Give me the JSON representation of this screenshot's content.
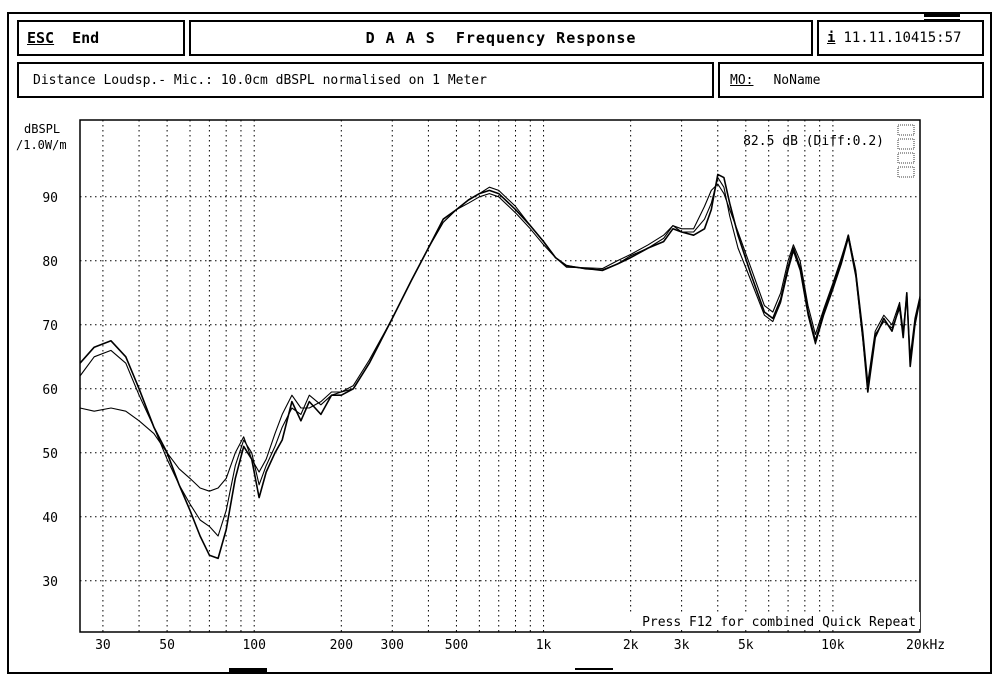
{
  "header": {
    "esc_key": "ESC",
    "esc_label": "End",
    "title": "D A A S  Frequency Response",
    "info_key": "i",
    "datetime": "11.11.10415:57"
  },
  "subheader": {
    "description": "Distance Loudsp.- Mic.: 10.0cm dBSPL normalised on 1 Meter",
    "mo_key": "MO:",
    "mo_value": "NoName"
  },
  "chart_data": {
    "type": "line",
    "ylabel_line1": "dBSPL",
    "ylabel_line2": "/1.0W/m",
    "xlabel": "",
    "x_scale": "log",
    "xlim": [
      25,
      20000
    ],
    "ylim": [
      22,
      102
    ],
    "grid": true,
    "y_ticks": [
      30,
      40,
      50,
      60,
      70,
      80,
      90
    ],
    "x_ticks": [
      {
        "value": 30,
        "label": "30"
      },
      {
        "value": 50,
        "label": "50"
      },
      {
        "value": 100,
        "label": "100"
      },
      {
        "value": 200,
        "label": "200"
      },
      {
        "value": 300,
        "label": "300"
      },
      {
        "value": 500,
        "label": "500"
      },
      {
        "value": 1000,
        "label": "1k"
      },
      {
        "value": 2000,
        "label": "2k"
      },
      {
        "value": 3000,
        "label": "3k"
      },
      {
        "value": 5000,
        "label": "5k"
      },
      {
        "value": 10000,
        "label": "10k"
      },
      {
        "value": 20000,
        "label": "20kHz"
      }
    ],
    "annotation_level": "82.5 dB (Diff:0.2)",
    "annotation_footer": "Press F12 for combined Quick Repeat",
    "series": [
      {
        "stroke_width": 1.6,
        "points": [
          [
            25,
            64
          ],
          [
            28,
            66.5
          ],
          [
            32,
            67.5
          ],
          [
            36,
            65
          ],
          [
            40,
            60
          ],
          [
            45,
            54
          ],
          [
            50,
            50
          ],
          [
            55,
            45
          ],
          [
            60,
            41
          ],
          [
            65,
            37
          ],
          [
            70,
            34
          ],
          [
            75,
            33.5
          ],
          [
            80,
            38
          ],
          [
            86,
            46
          ],
          [
            92,
            51
          ],
          [
            98,
            49
          ],
          [
            104,
            43
          ],
          [
            110,
            47
          ],
          [
            118,
            50
          ],
          [
            125,
            52
          ],
          [
            135,
            58
          ],
          [
            145,
            55
          ],
          [
            155,
            58
          ],
          [
            170,
            56
          ],
          [
            185,
            59
          ],
          [
            200,
            59
          ],
          [
            220,
            60
          ],
          [
            250,
            64
          ],
          [
            300,
            71
          ],
          [
            350,
            77
          ],
          [
            400,
            82
          ],
          [
            450,
            86.5
          ],
          [
            500,
            88
          ],
          [
            550,
            89.5
          ],
          [
            600,
            90.5
          ],
          [
            650,
            91
          ],
          [
            700,
            90.5
          ],
          [
            800,
            88
          ],
          [
            900,
            85.5
          ],
          [
            1000,
            83
          ],
          [
            1100,
            80.5
          ],
          [
            1200,
            79.2
          ],
          [
            1400,
            78.8
          ],
          [
            1600,
            78.5
          ],
          [
            1800,
            79.5
          ],
          [
            2000,
            80.5
          ],
          [
            2300,
            82
          ],
          [
            2600,
            83
          ],
          [
            2800,
            85
          ],
          [
            3000,
            84.5
          ],
          [
            3300,
            84
          ],
          [
            3600,
            85
          ],
          [
            3800,
            88
          ],
          [
            4000,
            93.5
          ],
          [
            4200,
            93
          ],
          [
            4400,
            89
          ],
          [
            4700,
            84
          ],
          [
            5200,
            78
          ],
          [
            5800,
            72
          ],
          [
            6200,
            71
          ],
          [
            6600,
            74
          ],
          [
            7000,
            79
          ],
          [
            7300,
            82
          ],
          [
            7700,
            79
          ],
          [
            8200,
            72
          ],
          [
            8700,
            67.5
          ],
          [
            9300,
            72
          ],
          [
            10000,
            76
          ],
          [
            10700,
            80
          ],
          [
            11300,
            84
          ],
          [
            12000,
            78
          ],
          [
            12700,
            68
          ],
          [
            13200,
            59.5
          ],
          [
            14000,
            68
          ],
          [
            15000,
            71
          ],
          [
            16000,
            69
          ],
          [
            17000,
            73
          ],
          [
            17500,
            68
          ],
          [
            18000,
            75
          ],
          [
            18500,
            63.5
          ],
          [
            19200,
            70
          ],
          [
            20000,
            74
          ]
        ]
      },
      {
        "stroke_width": 1.1,
        "points": [
          [
            25,
            57
          ],
          [
            28,
            56.5
          ],
          [
            32,
            57
          ],
          [
            36,
            56.5
          ],
          [
            40,
            55
          ],
          [
            45,
            53
          ],
          [
            50,
            50
          ],
          [
            55,
            47.5
          ],
          [
            60,
            46
          ],
          [
            65,
            44.5
          ],
          [
            70,
            44
          ],
          [
            75,
            44.5
          ],
          [
            80,
            46
          ],
          [
            86,
            50
          ],
          [
            92,
            52.5
          ],
          [
            98,
            49
          ],
          [
            104,
            47
          ],
          [
            110,
            49
          ],
          [
            118,
            53
          ],
          [
            125,
            56
          ],
          [
            135,
            59
          ],
          [
            145,
            57
          ],
          [
            155,
            57
          ],
          [
            170,
            58
          ],
          [
            185,
            59.5
          ],
          [
            200,
            59.5
          ],
          [
            220,
            60.5
          ],
          [
            250,
            64.5
          ],
          [
            300,
            71
          ],
          [
            350,
            77
          ],
          [
            400,
            82
          ],
          [
            450,
            86
          ],
          [
            500,
            88
          ],
          [
            550,
            89
          ],
          [
            600,
            90
          ],
          [
            650,
            90.5
          ],
          [
            700,
            90
          ],
          [
            800,
            87.5
          ],
          [
            900,
            85
          ],
          [
            1000,
            82.5
          ],
          [
            1100,
            80.5
          ],
          [
            1200,
            79.3
          ],
          [
            1400,
            78.7
          ],
          [
            1600,
            78.6
          ],
          [
            1800,
            79.5
          ],
          [
            2000,
            80.8
          ],
          [
            2300,
            82
          ],
          [
            2600,
            83.5
          ],
          [
            2800,
            85.5
          ],
          [
            3000,
            84.5
          ],
          [
            3300,
            84.5
          ],
          [
            3600,
            86.5
          ],
          [
            3800,
            89
          ],
          [
            4000,
            93
          ],
          [
            4200,
            91.5
          ],
          [
            4400,
            87
          ],
          [
            4700,
            82
          ],
          [
            5200,
            77
          ],
          [
            5800,
            71.5
          ],
          [
            6200,
            70.5
          ],
          [
            6600,
            73.5
          ],
          [
            7000,
            78.5
          ],
          [
            7300,
            81.5
          ],
          [
            7700,
            78.5
          ],
          [
            8200,
            71.5
          ],
          [
            8700,
            67
          ],
          [
            9300,
            71.5
          ],
          [
            10000,
            75.5
          ],
          [
            10700,
            79.5
          ],
          [
            11300,
            83.5
          ],
          [
            12000,
            77.5
          ],
          [
            12700,
            67.5
          ],
          [
            13200,
            60
          ],
          [
            14000,
            68.5
          ],
          [
            15000,
            70.5
          ],
          [
            16000,
            69.5
          ],
          [
            17000,
            72.5
          ],
          [
            17500,
            68.5
          ],
          [
            18000,
            74.5
          ],
          [
            18500,
            64
          ],
          [
            19200,
            70.5
          ],
          [
            20000,
            74
          ]
        ]
      },
      {
        "stroke_width": 1.1,
        "points": [
          [
            25,
            62
          ],
          [
            28,
            65
          ],
          [
            32,
            66
          ],
          [
            36,
            64
          ],
          [
            40,
            59
          ],
          [
            45,
            54
          ],
          [
            50,
            49
          ],
          [
            55,
            45
          ],
          [
            60,
            42
          ],
          [
            65,
            39.5
          ],
          [
            70,
            38.5
          ],
          [
            75,
            37
          ],
          [
            80,
            41
          ],
          [
            86,
            48
          ],
          [
            92,
            52
          ],
          [
            98,
            50
          ],
          [
            104,
            45
          ],
          [
            110,
            48
          ],
          [
            118,
            51
          ],
          [
            125,
            54
          ],
          [
            135,
            57
          ],
          [
            145,
            56
          ],
          [
            155,
            59
          ],
          [
            170,
            57.5
          ],
          [
            185,
            59
          ],
          [
            200,
            59.5
          ],
          [
            220,
            60
          ],
          [
            250,
            64
          ],
          [
            300,
            71
          ],
          [
            350,
            77
          ],
          [
            400,
            82
          ],
          [
            450,
            86
          ],
          [
            500,
            88
          ],
          [
            550,
            89.5
          ],
          [
            600,
            90.5
          ],
          [
            650,
            91.5
          ],
          [
            700,
            91
          ],
          [
            800,
            88.5
          ],
          [
            900,
            85.5
          ],
          [
            1000,
            83
          ],
          [
            1100,
            80.5
          ],
          [
            1200,
            79
          ],
          [
            1400,
            78.9
          ],
          [
            1600,
            78.8
          ],
          [
            1800,
            80
          ],
          [
            2000,
            81
          ],
          [
            2300,
            82.5
          ],
          [
            2600,
            84
          ],
          [
            2800,
            85.5
          ],
          [
            3000,
            85
          ],
          [
            3300,
            85
          ],
          [
            3600,
            88.5
          ],
          [
            3800,
            91
          ],
          [
            4000,
            92
          ],
          [
            4200,
            90.5
          ],
          [
            4400,
            88
          ],
          [
            4700,
            84.5
          ],
          [
            5200,
            79
          ],
          [
            5800,
            73
          ],
          [
            6200,
            72
          ],
          [
            6600,
            75
          ],
          [
            7000,
            80
          ],
          [
            7300,
            82.5
          ],
          [
            7700,
            80
          ],
          [
            8200,
            73
          ],
          [
            8700,
            68.5
          ],
          [
            9300,
            72.5
          ],
          [
            10000,
            76.5
          ],
          [
            10700,
            80.5
          ],
          [
            11300,
            84
          ],
          [
            12000,
            78.5
          ],
          [
            12700,
            69
          ],
          [
            13200,
            61
          ],
          [
            14000,
            69
          ],
          [
            15000,
            71.5
          ],
          [
            16000,
            70
          ],
          [
            17000,
            73.5
          ],
          [
            17500,
            69
          ],
          [
            18000,
            75
          ],
          [
            18500,
            65
          ],
          [
            19200,
            71
          ],
          [
            20000,
            74.5
          ]
        ]
      }
    ]
  }
}
